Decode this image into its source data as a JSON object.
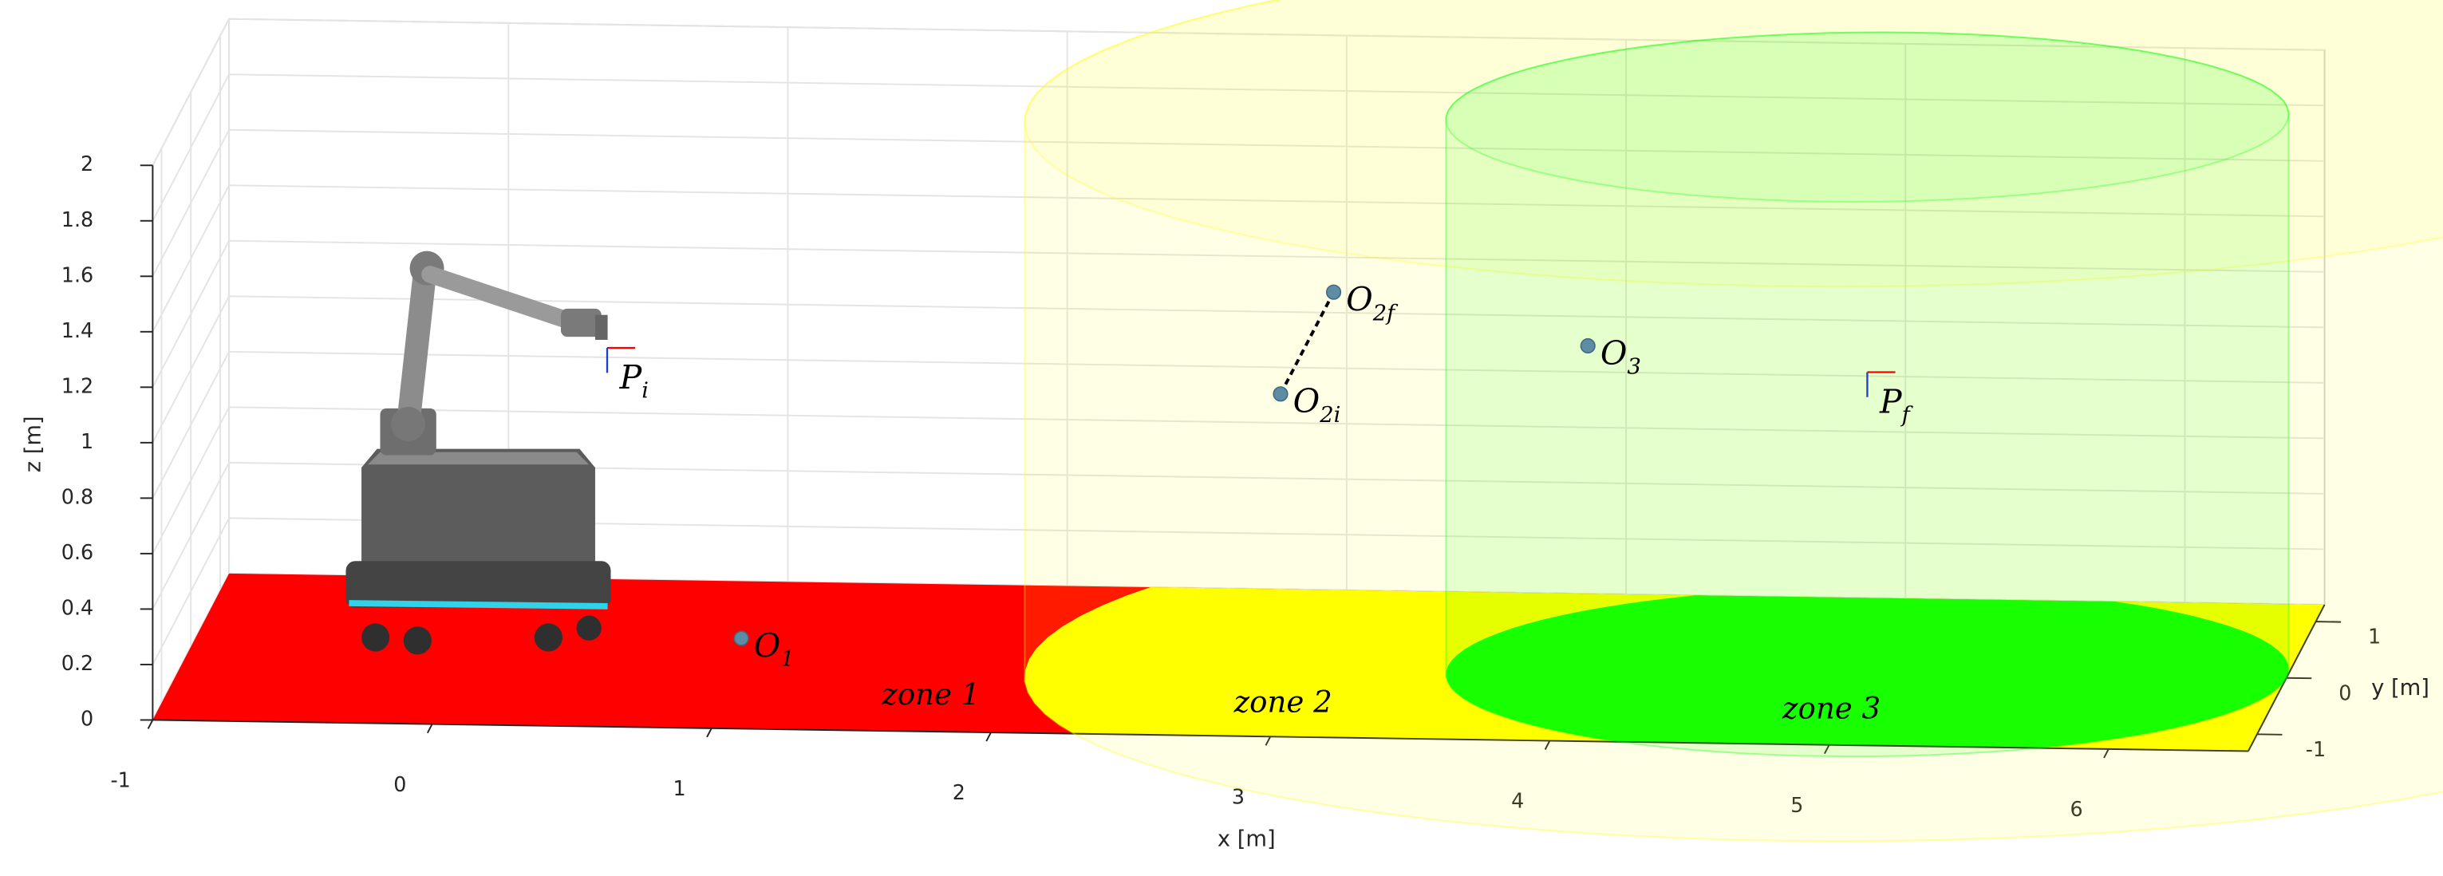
{
  "chart_data": {
    "type": "scatter3d",
    "xlabel": "x [m]",
    "ylabel": "y [m]",
    "zlabel": "z [m]",
    "xlim": [
      -1,
      6.5
    ],
    "ylim": [
      -1.3,
      1.3
    ],
    "zlim": [
      0,
      2
    ],
    "xticks": [
      -1,
      0,
      1,
      2,
      3,
      4,
      5,
      6
    ],
    "yticks": [
      -1,
      0,
      1
    ],
    "zticks": [
      0,
      0.2,
      0.4,
      0.6,
      0.8,
      1,
      1.2,
      1.4,
      1.6,
      1.8,
      2
    ],
    "grid": true,
    "zones": [
      {
        "name": "zone 1",
        "color": "#ff0000"
      },
      {
        "name": "zone 2",
        "color": "#ffff00",
        "center": [
          5,
          0
        ],
        "radius": 3,
        "height": 2
      },
      {
        "name": "zone 3",
        "color": "#00ff00",
        "center": [
          5,
          0
        ],
        "radius": 1.5,
        "height": 2
      }
    ],
    "points": [
      {
        "label": "O",
        "subscript": "1",
        "x": 0.97,
        "y": 0,
        "z": 0.06,
        "marker": "circle",
        "color": "#5f8ca5"
      },
      {
        "label": "O",
        "subscript": "2i",
        "x": 2.9,
        "y": 0,
        "z": 0.97,
        "marker": "circle",
        "color": "#5f8ca5"
      },
      {
        "label": "O",
        "subscript": "2f",
        "x": 3.09,
        "y": 0,
        "z": 1.34,
        "marker": "circle",
        "color": "#5f8ca5"
      },
      {
        "label": "O",
        "subscript": "3",
        "x": 4.0,
        "y": 0,
        "z": 1.16,
        "marker": "circle",
        "color": "#5f8ca5"
      },
      {
        "label": "P",
        "subscript": "i",
        "x": 0.49,
        "y": 0,
        "z": 1.1,
        "marker": "frame",
        "color": "#ff0000"
      },
      {
        "label": "P",
        "subscript": "f",
        "x": 5.0,
        "y": 0,
        "z": 1.08,
        "marker": "frame",
        "color": "#ff0000"
      }
    ],
    "links": [
      [
        1,
        2
      ]
    ]
  }
}
